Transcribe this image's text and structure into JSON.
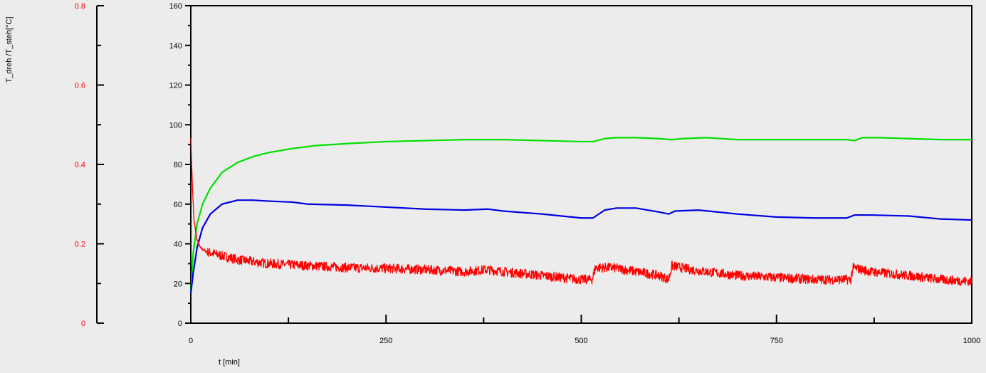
{
  "chart_data": {
    "type": "line",
    "xlabel": "t [min]",
    "ylabel": "T_dreh /T_steh[°C]",
    "xlim": [
      0,
      1000
    ],
    "ylim": [
      0,
      160
    ],
    "y2lim": [
      0,
      0.8
    ],
    "x_ticks": [
      "0",
      "250",
      "500",
      "750",
      "1000"
    ],
    "y_ticks": [
      "0",
      "20",
      "40",
      "60",
      "80",
      "100",
      "120",
      "140",
      "160"
    ],
    "y2_ticks": [
      "0",
      "0.2",
      "0.4",
      "0.6",
      "0.8"
    ],
    "grid": false,
    "colors": {
      "left_axis": "#ff0000",
      "right_axis": "#000000",
      "background": "#ececec"
    },
    "series": [
      {
        "color": "#00e000",
        "axis": "right",
        "points": [
          [
            0,
            15
          ],
          [
            3,
            35
          ],
          [
            8,
            50
          ],
          [
            15,
            60
          ],
          [
            25,
            68
          ],
          [
            40,
            76
          ],
          [
            60,
            81
          ],
          [
            80,
            84
          ],
          [
            100,
            86
          ],
          [
            130,
            88
          ],
          [
            160,
            89.5
          ],
          [
            200,
            90.5
          ],
          [
            250,
            91.5
          ],
          [
            300,
            92
          ],
          [
            350,
            92.5
          ],
          [
            400,
            92.5
          ],
          [
            450,
            92
          ],
          [
            500,
            91.5
          ],
          [
            515,
            91.5
          ],
          [
            530,
            93
          ],
          [
            545,
            93.5
          ],
          [
            570,
            93.5
          ],
          [
            600,
            93
          ],
          [
            615,
            92.5
          ],
          [
            630,
            93
          ],
          [
            660,
            93.5
          ],
          [
            700,
            92.5
          ],
          [
            750,
            92.5
          ],
          [
            800,
            92.5
          ],
          [
            840,
            92.5
          ],
          [
            850,
            92
          ],
          [
            860,
            93.5
          ],
          [
            880,
            93.5
          ],
          [
            920,
            93
          ],
          [
            960,
            92.5
          ],
          [
            1000,
            92.5
          ]
        ]
      },
      {
        "color": "#0000e0",
        "axis": "right",
        "points": [
          [
            0,
            15
          ],
          [
            3,
            25
          ],
          [
            8,
            38
          ],
          [
            15,
            48
          ],
          [
            25,
            55
          ],
          [
            40,
            60
          ],
          [
            60,
            62
          ],
          [
            80,
            62
          ],
          [
            100,
            61.5
          ],
          [
            130,
            61
          ],
          [
            150,
            60
          ],
          [
            200,
            59.5
          ],
          [
            250,
            58.5
          ],
          [
            300,
            57.5
          ],
          [
            350,
            57
          ],
          [
            380,
            57.5
          ],
          [
            400,
            56.5
          ],
          [
            450,
            55
          ],
          [
            500,
            53
          ],
          [
            515,
            53
          ],
          [
            530,
            57
          ],
          [
            545,
            58
          ],
          [
            570,
            58
          ],
          [
            600,
            56
          ],
          [
            612,
            55
          ],
          [
            620,
            56.5
          ],
          [
            650,
            57
          ],
          [
            700,
            55
          ],
          [
            750,
            53.5
          ],
          [
            800,
            53
          ],
          [
            840,
            53
          ],
          [
            850,
            54.5
          ],
          [
            870,
            54.5
          ],
          [
            920,
            54
          ],
          [
            960,
            52.5
          ],
          [
            1000,
            52
          ]
        ]
      },
      {
        "color": "#ff0000",
        "axis": "left",
        "noise": 0.012,
        "points": [
          [
            0,
            0.47
          ],
          [
            2,
            0.35
          ],
          [
            4,
            0.26
          ],
          [
            8,
            0.21
          ],
          [
            12,
            0.19
          ],
          [
            20,
            0.18
          ],
          [
            40,
            0.17
          ],
          [
            60,
            0.16
          ],
          [
            80,
            0.155
          ],
          [
            100,
            0.15
          ],
          [
            150,
            0.145
          ],
          [
            200,
            0.14
          ],
          [
            250,
            0.138
          ],
          [
            300,
            0.135
          ],
          [
            350,
            0.13
          ],
          [
            380,
            0.135
          ],
          [
            400,
            0.13
          ],
          [
            450,
            0.12
          ],
          [
            500,
            0.11
          ],
          [
            514,
            0.11
          ],
          [
            518,
            0.14
          ],
          [
            540,
            0.14
          ],
          [
            570,
            0.13
          ],
          [
            600,
            0.12
          ],
          [
            612,
            0.11
          ],
          [
            616,
            0.145
          ],
          [
            640,
            0.135
          ],
          [
            700,
            0.12
          ],
          [
            750,
            0.115
          ],
          [
            800,
            0.11
          ],
          [
            845,
            0.11
          ],
          [
            848,
            0.14
          ],
          [
            870,
            0.13
          ],
          [
            920,
            0.12
          ],
          [
            960,
            0.11
          ],
          [
            1000,
            0.105
          ]
        ]
      }
    ]
  }
}
